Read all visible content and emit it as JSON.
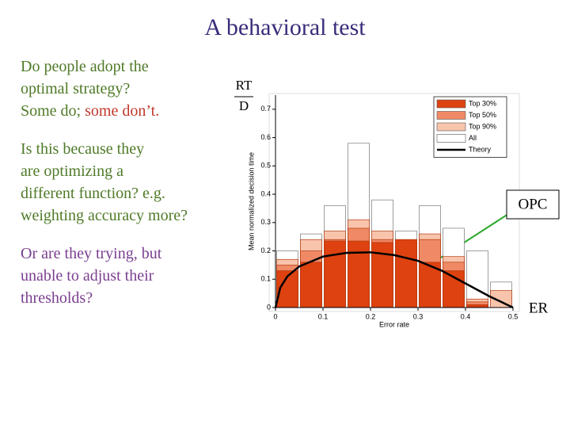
{
  "slide": {
    "title": "A behavioral test",
    "paragraphs": [
      [
        [
          {
            "text": "Do people adopt the",
            "color": "#4f7a28"
          }
        ],
        [
          {
            "text": "optimal strategy?",
            "color": "#4f7a28"
          }
        ],
        [
          {
            "text": "Some do;",
            "color": "#4f7a28"
          },
          {
            "text": "some don’t.",
            "color": "#c0392b"
          }
        ]
      ],
      [
        [
          {
            "text": "Is this because they",
            "color": "#4f7a28"
          }
        ],
        [
          {
            "text": "are optimizing a",
            "color": "#4f7a28"
          }
        ],
        [
          {
            "text": "different function? e.g.",
            "color": "#4f7a28"
          }
        ],
        [
          {
            "text": "weighting accuracy more?",
            "color": "#4f7a28"
          }
        ]
      ],
      [
        [
          {
            "text": "Or are they trying, but",
            "color": "#7b3f8f"
          }
        ],
        [
          {
            "text": "unable to adjust their",
            "color": "#7b3f8f"
          }
        ],
        [
          {
            "text": "thresholds?",
            "color": "#7b3f8f"
          }
        ]
      ]
    ]
  },
  "chart_data": {
    "type": "bar",
    "x_label": "Error rate",
    "y_label": "Mean normalized decision time",
    "annotations": {
      "numerator": "RT",
      "denominator": "D",
      "curve": "OPC",
      "axis": "ER"
    },
    "x": [
      0.025,
      0.075,
      0.125,
      0.175,
      0.225,
      0.275,
      0.325,
      0.375,
      0.425,
      0.475
    ],
    "xlim": [
      0,
      0.5
    ],
    "xticks": [
      0,
      0.1,
      0.2,
      0.3,
      0.4,
      0.5
    ],
    "ylim": [
      0,
      0.75
    ],
    "yticks": [
      0,
      0.1,
      0.2,
      0.3,
      0.4,
      0.5,
      0.6,
      0.7
    ],
    "legend": "upper right",
    "series": [
      {
        "name": "All",
        "color": "#ffffff",
        "values": [
          0.2,
          0.26,
          0.36,
          0.58,
          0.38,
          0.27,
          0.36,
          0.28,
          0.2,
          0.09
        ]
      },
      {
        "name": "Top 90%",
        "color": "#f8c4ac",
        "values": [
          0.17,
          0.24,
          0.27,
          0.31,
          0.27,
          0.24,
          0.26,
          0.18,
          0.03,
          0.06
        ]
      },
      {
        "name": "Top 50%",
        "color": "#f08a66",
        "values": [
          0.15,
          0.2,
          0.24,
          0.28,
          0.24,
          0.23,
          0.24,
          0.16,
          0.02,
          0
        ]
      },
      {
        "name": "Top 30%",
        "color": "#dd4210",
        "values": [
          0.13,
          0.16,
          0.235,
          0.235,
          0.23,
          0.24,
          0.16,
          0.13,
          0.01,
          0
        ]
      },
      {
        "name": "Theory",
        "type": "line",
        "color": "#000000",
        "x": [
          0,
          0.01,
          0.025,
          0.05,
          0.1,
          0.15,
          0.2,
          0.25,
          0.3,
          0.35,
          0.4,
          0.45,
          0.5
        ],
        "values": [
          0,
          0.07,
          0.11,
          0.145,
          0.18,
          0.193,
          0.195,
          0.185,
          0.165,
          0.13,
          0.085,
          0.04,
          0
        ]
      }
    ],
    "legend_order": [
      3,
      2,
      1,
      0,
      4
    ]
  }
}
